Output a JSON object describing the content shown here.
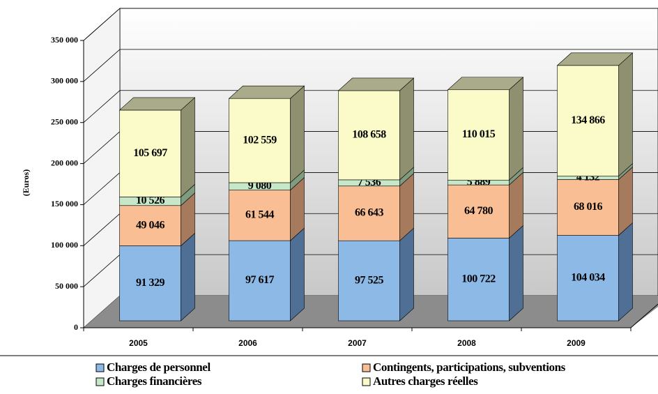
{
  "chart_data": {
    "type": "bar3d_stacked",
    "y_label": "(Euros)",
    "categories": [
      "2005",
      "2006",
      "2007",
      "2008",
      "2009"
    ],
    "series": [
      {
        "name": "Charges de personnel",
        "color": "#8db9e6",
        "side_color": "#4f6f94",
        "values": [
          91329,
          97617,
          97525,
          100722,
          104034
        ],
        "value_labels": [
          "91 329",
          "97 617",
          "97 525",
          "100 722",
          "104 034"
        ]
      },
      {
        "name": "Contingents, participations, subventions",
        "color": "#f9be93",
        "side_color": "#a57a5d",
        "values": [
          49046,
          61544,
          66643,
          64780,
          68016
        ],
        "value_labels": [
          "49 046",
          "61 544",
          "66 643",
          "64 780",
          "68 016"
        ]
      },
      {
        "name": "Charges financières",
        "color": "#c7e8c8",
        "side_color": "#7f9b80",
        "values": [
          10526,
          9080,
          7536,
          5889,
          4132
        ],
        "value_labels": [
          "10 526",
          "9 080",
          "7 536",
          "5 889",
          "4 132"
        ]
      },
      {
        "name": "Autres charges réelles",
        "color": "#fafbc8",
        "side_color": "#8f9070",
        "values": [
          105697,
          102559,
          108658,
          110015,
          134866
        ],
        "value_labels": [
          "105 697",
          "102 559",
          "108 658",
          "110 015",
          "134 866"
        ]
      }
    ],
    "top_color": "#a9ab8a",
    "ylim": [
      0,
      350000
    ],
    "yticks": [
      0,
      {
        "value": 50000,
        "label": "50 000"
      },
      {
        "value": 100000,
        "label": "100 000"
      },
      {
        "value": 150000,
        "label": "150 000"
      },
      {
        "value": 200000,
        "label": "200 000"
      },
      {
        "value": 250000,
        "label": "250 000"
      },
      {
        "value": 300000,
        "label": "300 000"
      },
      {
        "value": 350000,
        "label": "350 000"
      }
    ],
    "grid": true
  }
}
